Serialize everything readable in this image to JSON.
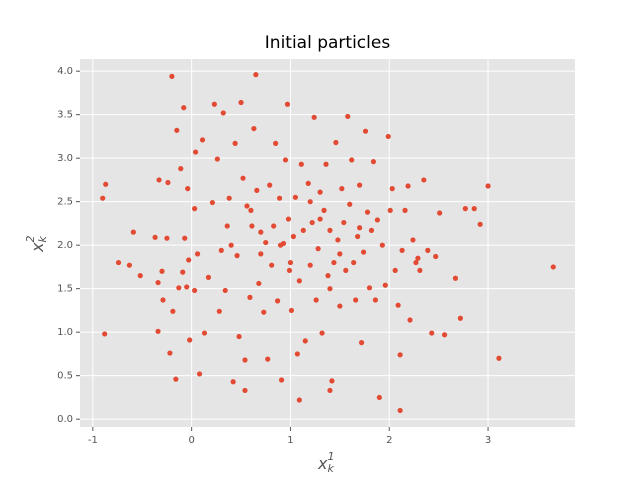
{
  "chart_data": {
    "type": "scatter",
    "title": "Initial particles",
    "xlabel": {
      "base": "x",
      "sub": "k",
      "sup": "1"
    },
    "ylabel": {
      "base": "x",
      "sub": "k",
      "sup": "2"
    },
    "color": "#E24A33",
    "background": "#E5E5E5",
    "grid": true,
    "xlim": [
      -1.13,
      3.88
    ],
    "ylim": [
      -0.09,
      4.14
    ],
    "xticks": [
      -1,
      0,
      1,
      2,
      3
    ],
    "yticks": [
      {
        "value": 0,
        "label": "0.0"
      },
      {
        "value": 0.5,
        "label": "0.5"
      },
      {
        "value": 1,
        "label": "1.0"
      },
      {
        "value": 1.5,
        "label": "1.5"
      },
      {
        "value": 2,
        "label": "2.0"
      },
      {
        "value": 2.5,
        "label": "2.5"
      },
      {
        "value": 3,
        "label": "3.0"
      },
      {
        "value": 3.5,
        "label": "3.5"
      },
      {
        "value": 4,
        "label": "4.0"
      }
    ],
    "x": [
      -0.9,
      -0.87,
      -0.88,
      -0.74,
      -0.63,
      -0.59,
      -0.52,
      -0.37,
      -0.34,
      -0.34,
      -0.33,
      -0.3,
      -0.29,
      -0.25,
      -0.24,
      -0.22,
      -0.2,
      -0.19,
      -0.16,
      -0.15,
      -0.13,
      -0.11,
      -0.09,
      -0.08,
      -0.07,
      -0.05,
      -0.04,
      -0.03,
      -0.02,
      0.03,
      0.03,
      0.04,
      0.06,
      0.08,
      0.11,
      0.13,
      0.17,
      0.21,
      0.23,
      0.26,
      0.28,
      0.3,
      0.32,
      0.34,
      0.36,
      0.38,
      0.42,
      0.44,
      0.46,
      0.48,
      0.5,
      0.52,
      0.54,
      0.56,
      0.59,
      0.61,
      0.63,
      0.65,
      0.66,
      0.68,
      0.7,
      0.73,
      0.75,
      0.77,
      0.79,
      0.81,
      0.83,
      0.85,
      0.87,
      0.89,
      0.91,
      0.93,
      0.95,
      0.97,
      0.98,
      0.99,
      1.01,
      1.03,
      1.05,
      1.07,
      1.09,
      1.11,
      1.13,
      1.15,
      1.18,
      1.2,
      1.22,
      1.24,
      1.26,
      1.28,
      1.3,
      1.32,
      1.34,
      1.36,
      1.38,
      1.4,
      1.42,
      1.44,
      1.46,
      1.48,
      1.5,
      1.52,
      1.54,
      1.56,
      1.58,
      1.6,
      1.62,
      1.64,
      1.66,
      1.68,
      1.7,
      1.72,
      1.74,
      1.76,
      1.78,
      1.8,
      1.82,
      1.84,
      1.86,
      1.88,
      1.9,
      1.93,
      1.96,
      1.99,
      2.01,
      2.03,
      2.06,
      2.09,
      2.11,
      2.13,
      2.16,
      2.19,
      2.21,
      2.24,
      2.27,
      2.31,
      2.35,
      2.39,
      2.43,
      2.47,
      2.51,
      2.56,
      2.67,
      2.72,
      2.77,
      2.86,
      2.92,
      3.0,
      3.11,
      3.66,
      2.11,
      1.09,
      1.4,
      0.54,
      2.29,
      1.2,
      0.9,
      1.5,
      0.6,
      1.3,
      0.4,
      1.0,
      1.7,
      0.7,
      1.4
    ],
    "values": [
      2.54,
      2.7,
      0.98,
      1.8,
      1.77,
      2.15,
      1.65,
      2.09,
      1.01,
      1.57,
      2.75,
      1.7,
      1.37,
      2.08,
      2.72,
      0.76,
      3.94,
      1.24,
      0.46,
      3.32,
      1.51,
      2.88,
      1.69,
      3.58,
      2.08,
      1.52,
      2.65,
      1.83,
      0.91,
      1.48,
      2.42,
      3.07,
      1.9,
      0.52,
      3.21,
      0.99,
      1.63,
      2.49,
      3.62,
      2.99,
      1.24,
      1.94,
      3.52,
      1.48,
      2.22,
      2.54,
      0.43,
      3.17,
      1.88,
      0.95,
      3.64,
      2.77,
      0.68,
      2.45,
      1.4,
      2.22,
      3.34,
      3.96,
      2.63,
      1.56,
      2.15,
      1.23,
      2.03,
      0.69,
      2.69,
      1.77,
      2.22,
      3.17,
      1.36,
      2.54,
      0.45,
      2.02,
      2.98,
      3.62,
      2.3,
      1.71,
      1.25,
      2.1,
      2.55,
      0.75,
      1.59,
      2.93,
      2.17,
      0.9,
      2.71,
      1.77,
      2.26,
      3.47,
      1.37,
      1.96,
      2.61,
      0.99,
      2.4,
      2.93,
      1.65,
      2.17,
      0.44,
      1.8,
      3.18,
      2.06,
      1.3,
      2.65,
      2.26,
      1.71,
      3.48,
      2.47,
      2.98,
      1.8,
      1.37,
      2.1,
      2.69,
      0.88,
      1.92,
      3.31,
      2.38,
      1.51,
      2.17,
      2.96,
      1.37,
      2.29,
      0.25,
      2.0,
      1.54,
      3.25,
      2.4,
      2.65,
      1.71,
      1.31,
      0.74,
      1.94,
      2.4,
      2.68,
      1.14,
      2.06,
      1.8,
      1.71,
      2.75,
      1.94,
      0.99,
      1.87,
      2.37,
      0.97,
      1.62,
      1.16,
      2.42,
      2.42,
      2.24,
      2.68,
      0.7,
      1.75,
      0.1,
      0.22,
      0.33,
      0.33,
      1.85,
      2.5,
      2.0,
      1.9,
      2.4,
      2.3,
      2.0,
      1.8,
      2.2,
      1.9,
      1.5
    ]
  }
}
